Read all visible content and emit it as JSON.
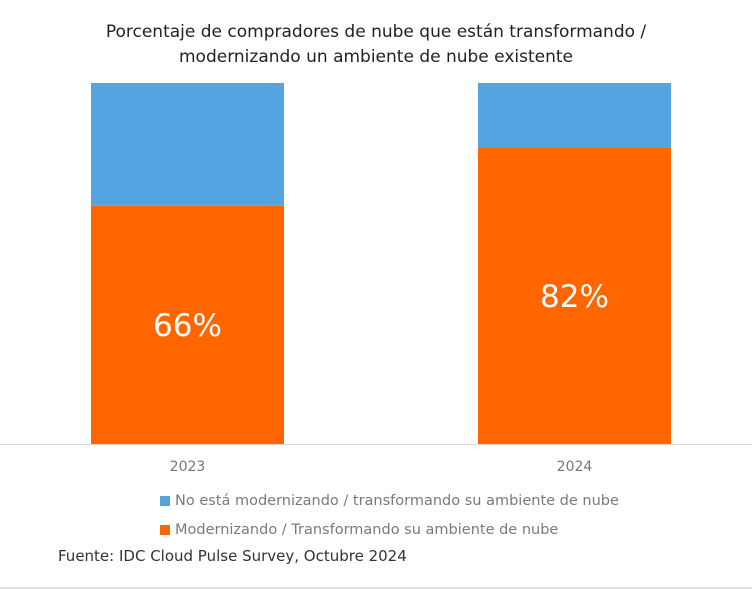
{
  "chart_data": {
    "type": "bar",
    "stacked": true,
    "normalized": true,
    "title_lines": [
      "Porcentaje de compradores de nube que están transformando /",
      "modernizando un ambiente de nube existente"
    ],
    "categories": [
      "2023",
      "2024"
    ],
    "series": [
      {
        "name": "Modernizando / Transformando su ambiente de nube",
        "color": "#ff6600",
        "values": [
          66,
          82
        ],
        "labels": [
          "66%",
          "82%"
        ]
      },
      {
        "name": "No está modernizando / transformando su ambiente de nube",
        "color": "#53a4e0",
        "values": [
          34,
          18
        ]
      }
    ],
    "ylim": [
      0,
      100
    ],
    "xlabel": "",
    "ylabel": "",
    "grid": false,
    "legend_position": "bottom"
  },
  "legend": [
    {
      "label": "No está modernizando / transformando su ambiente de nube",
      "color": "#53a4e0"
    },
    {
      "label": "Modernizando / Transformando su ambiente de nube",
      "color": "#ff6600"
    }
  ],
  "source": "Fuente: IDC Cloud Pulse Survey, Octubre 2024"
}
